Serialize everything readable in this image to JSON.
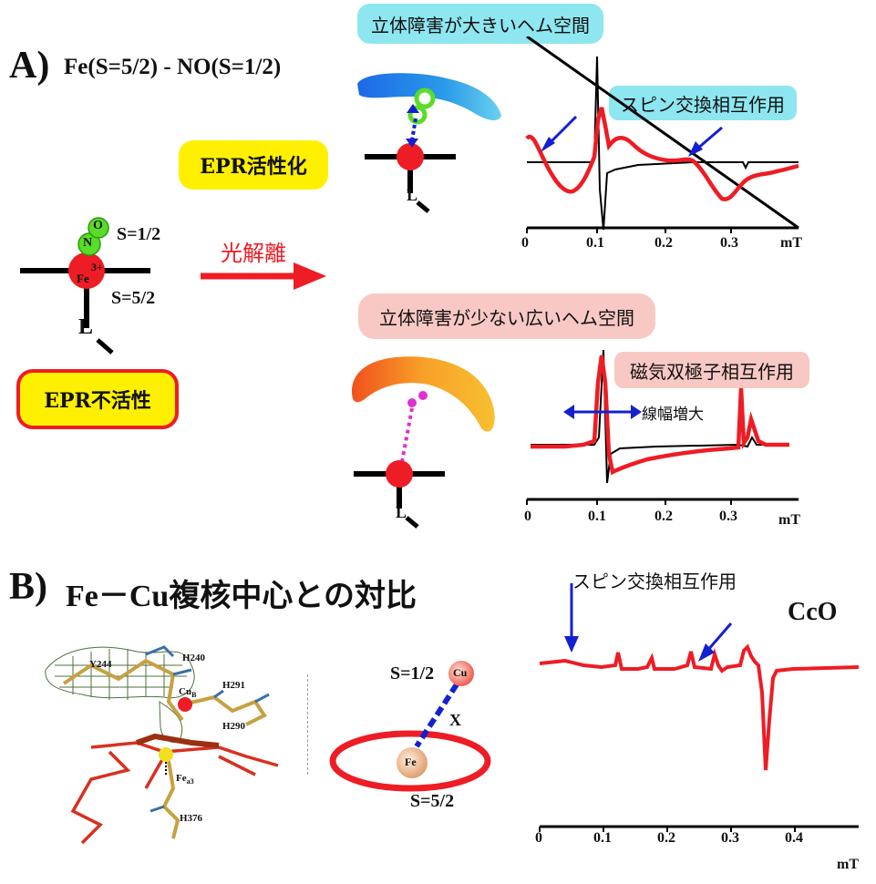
{
  "section_a": {
    "letter": "A)",
    "title": "Fe(S=5/2) - NO(S=1/2)",
    "photolysis": "光解離",
    "epr_active": "EPR活性化",
    "epr_inactive": "EPR不活性",
    "complex": {
      "o": "O",
      "n": "N",
      "fe": "Fe",
      "fe_charge": "3+",
      "spin_no": "S=1/2",
      "spin_fe": "S=5/2",
      "ligand": "L"
    },
    "top": {
      "badge": "立体障害が大きいヘム空間",
      "interaction": "スピン交換相互作用",
      "ligand": "L"
    },
    "bottom": {
      "badge": "立体障害が少ない広いヘム空間",
      "interaction": "磁気双極子相互作用",
      "broadening": "線幅増大",
      "ligand": "L"
    }
  },
  "section_b": {
    "letter": "B)",
    "title": "Fe－Cu複核中心との対比",
    "structure_labels": {
      "y244": "Y244",
      "h240": "H240",
      "cub": "Cu",
      "cub_sub": "B",
      "h291": "H291",
      "h290": "H290",
      "fea3": "Fe",
      "fea3_sub": "a3",
      "h376": "H376"
    },
    "spin_cu": "S=1/2",
    "cu": "Cu",
    "x": "X",
    "fe": "Fe",
    "spin_fe": "S=5/2",
    "interaction": "スピン交換相互作用",
    "sample": "CcO"
  },
  "colors": {
    "red": "#ee1c24",
    "blue": "#1420d0",
    "cyan_badge": "#8ee6f0",
    "pink_badge": "#f8c8c4",
    "yellow": "#fff000",
    "magenta": "#e030d0"
  },
  "chart_data": [
    {
      "type": "line",
      "name": "top-spectrum",
      "xunit": "mT",
      "xlim": [
        0,
        0.4
      ],
      "tick_labels": [
        "0",
        "0.1",
        "0.2",
        "0.3",
        "mT"
      ]
    },
    {
      "type": "line",
      "name": "bottom-spectrum",
      "xunit": "mT",
      "xlim": [
        0,
        0.4
      ],
      "tick_labels": [
        "0",
        "0.1",
        "0.2",
        "0.3",
        "mT"
      ]
    },
    {
      "type": "line",
      "name": "cco-spectrum",
      "xunit": "mT",
      "xlim": [
        0,
        0.5
      ],
      "tick_labels": [
        "0",
        "0.1",
        "0.2",
        "0.3",
        "0.4",
        "mT"
      ]
    }
  ]
}
